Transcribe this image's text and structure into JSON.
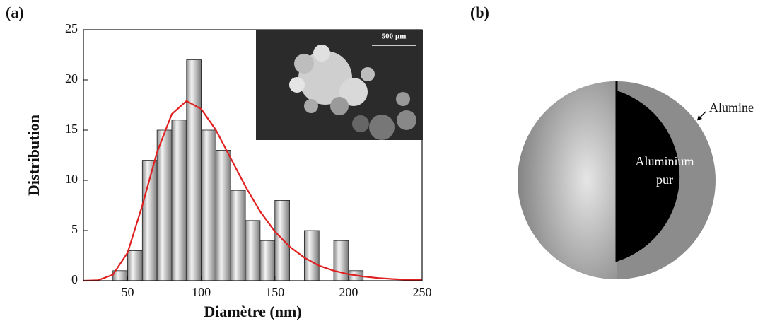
{
  "panel_a_label": "(a)",
  "panel_b_label": "(b)",
  "chart_data": {
    "type": "histogram",
    "x_label": "Diamètre (nm)",
    "y_label": "Distribution",
    "bins": [
      40,
      50,
      60,
      70,
      80,
      90,
      100,
      110,
      120,
      130,
      140,
      150,
      160,
      170,
      180,
      190,
      200,
      210
    ],
    "counts": [
      1,
      3,
      12,
      15,
      16,
      22,
      15,
      13,
      9,
      6,
      4,
      8,
      0,
      5,
      0,
      4,
      1
    ],
    "xlim": [
      20,
      250
    ],
    "xticks": [
      50,
      100,
      150,
      200,
      250
    ],
    "ylim": [
      0,
      25
    ],
    "yticks": [
      0,
      5,
      10,
      15,
      20,
      25
    ],
    "fit": {
      "color": "#e02020",
      "x": [
        20,
        30,
        40,
        50,
        60,
        70,
        80,
        90,
        100,
        110,
        120,
        130,
        140,
        150,
        160,
        170,
        180,
        190,
        200,
        210,
        220,
        230,
        240,
        250
      ],
      "y": [
        0,
        0.05,
        0.6,
        2.8,
        7.5,
        12.8,
        16.6,
        17.9,
        17.1,
        15,
        12.2,
        9.4,
        6.9,
        4.9,
        3.4,
        2.3,
        1.5,
        1.0,
        0.65,
        0.42,
        0.27,
        0.17,
        0.1,
        0.06
      ]
    },
    "inset_scale_label": "500 µm"
  },
  "diagram": {
    "shell_label": "Alumine",
    "core_label": [
      "Aluminium",
      "pur"
    ]
  }
}
